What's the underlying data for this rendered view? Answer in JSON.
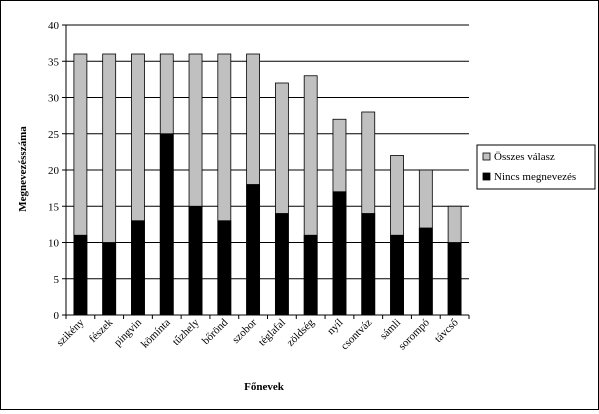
{
  "chart_data": {
    "type": "bar",
    "stacked": false,
    "overlap": true,
    "xlabel": "Főnevek",
    "ylabel": "Megnevezésszáma",
    "ylim": [
      0,
      40
    ],
    "yticks": [
      "0",
      "5",
      "10",
      "15",
      "20",
      "25",
      "30",
      "35",
      "40"
    ],
    "grid": true,
    "legend_position": "right",
    "categories": [
      "szikény",
      "fészek",
      "pingvin",
      "kömínta",
      "tűzhely",
      "bőrönd",
      "szobor",
      "téglafal",
      "zöldség",
      "nyíl",
      "csontváz",
      "sámli",
      "sorompó",
      "távcső"
    ],
    "series": [
      {
        "name": "Összes válasz",
        "color": "#c0c0c0",
        "values": [
          36,
          36,
          36,
          36,
          36,
          36,
          36,
          32,
          33,
          27,
          28,
          22,
          20,
          15
        ]
      },
      {
        "name": "Nincs megnevezés",
        "color": "#000000",
        "values": [
          11,
          10,
          13,
          25,
          15,
          13,
          18,
          14,
          11,
          17,
          14,
          11,
          12,
          10
        ]
      }
    ]
  }
}
